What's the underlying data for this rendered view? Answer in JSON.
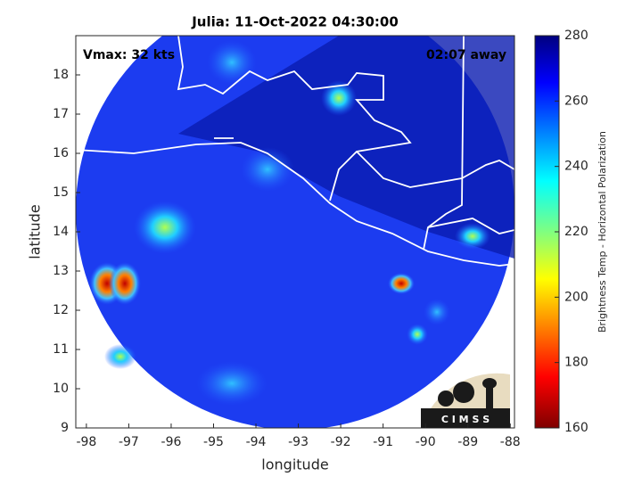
{
  "title": "Julia: 11-Oct-2022 04:30:00",
  "annotations": {
    "left": "Vmax: 32 kts",
    "right": "02:07 away"
  },
  "map": {
    "xlabel": "longitude",
    "ylabel": "latitude",
    "xlim": [
      -98.25,
      -87.9
    ],
    "ylim": [
      9,
      19
    ],
    "xticks": [
      -98,
      -97,
      -96,
      -95,
      -94,
      -93,
      -92,
      -91,
      -90,
      -89,
      -88
    ],
    "yticks": [
      9,
      10,
      11,
      12,
      13,
      14,
      15,
      16,
      17,
      18
    ]
  },
  "colorbar": {
    "label": "Brightness Temp - Horizontal Polarization",
    "lim": [
      160,
      280
    ],
    "ticks": [
      160,
      180,
      200,
      220,
      240,
      260,
      280
    ]
  },
  "logo": "C I M S S"
}
